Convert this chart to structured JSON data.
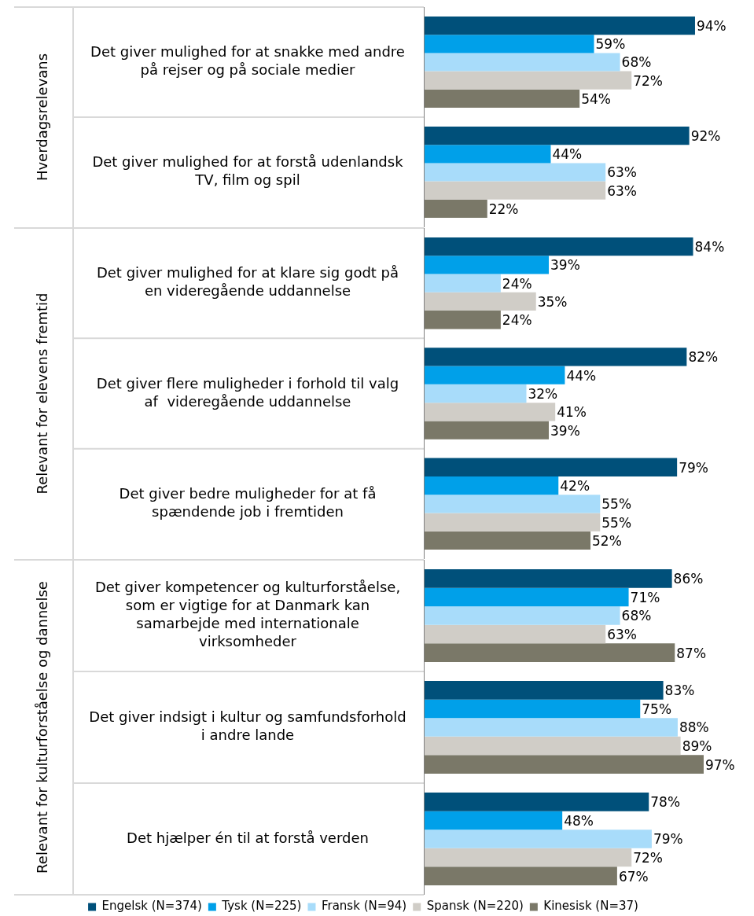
{
  "chart_data": [
    {
      "type": "bar",
      "orientation": "horizontal",
      "title": "Hverdagsrelevans",
      "categories": [
        "Det giver mulighed for at snakke med andre på rejser og på sociale medier",
        "Det giver mulighed for at forstå udenlandsk TV, film og spil"
      ],
      "series": [
        {
          "color": "#00507a",
          "values": [
            94,
            92
          ],
          "value_labels": [
            "94%",
            "92%"
          ]
        },
        {
          "color": "#00a0e9",
          "values": [
            59,
            44
          ],
          "value_labels": [
            "59%",
            "44%"
          ]
        },
        {
          "color": "#a8dcfa",
          "values": [
            68,
            63
          ],
          "value_labels": [
            "68%",
            "63%"
          ]
        },
        {
          "color": "#d0cdc7",
          "values": [
            72,
            63
          ],
          "value_labels": [
            "72%",
            "63%"
          ]
        },
        {
          "color": "#7a7868",
          "values": [
            54,
            22
          ],
          "value_labels": [
            "54%",
            "22%"
          ]
        }
      ]
    },
    {
      "type": "bar",
      "orientation": "horizontal",
      "title": "Relevant for elevens fremtid",
      "categories": [
        "Det giver mulighed for at klare sig godt på en videregående uddannelse",
        "Det giver flere muligheder i forhold til valg af  videregående uddannelse",
        "Det giver bedre muligheder for at få spændende job i fremtiden"
      ],
      "series": [
        {
          "color": "#00507a",
          "values": [
            84,
            82,
            79
          ],
          "value_labels": [
            "84%",
            "82%",
            "79%"
          ]
        },
        {
          "color": "#00a0e9",
          "values": [
            39,
            44,
            42
          ],
          "value_labels": [
            "39%",
            "44%",
            "42%"
          ]
        },
        {
          "color": "#a8dcfa",
          "values": [
            24,
            32,
            55
          ],
          "value_labels": [
            "24%",
            "32%",
            "55%"
          ]
        },
        {
          "color": "#d0cdc7",
          "values": [
            35,
            41,
            55
          ],
          "value_labels": [
            "35%",
            "41%",
            "55%"
          ]
        },
        {
          "color": "#7a7868",
          "values": [
            24,
            39,
            52
          ],
          "value_labels": [
            "24%",
            "39%",
            "52%"
          ]
        }
      ]
    },
    {
      "type": "bar",
      "orientation": "horizontal",
      "title": "Relevant for kulturforståelse og dannelse",
      "categories": [
        "Det giver kompetencer og kulturforståelse, som er vigtige for at Danmark kan samarbejde med internationale virksomheder",
        "Det giver indsigt i kultur og samfundsforhold i andre lande",
        "Det hjælper én til at forstå verden"
      ],
      "series": [
        {
          "name": "Engelsk (N=374)",
          "color": "#00507a",
          "values": [
            86,
            83,
            78
          ],
          "value_labels": [
            "86%",
            "83%",
            "78%"
          ]
        },
        {
          "name": "Tysk (N=225)",
          "color": "#00a0e9",
          "values": [
            71,
            75,
            48
          ],
          "value_labels": [
            "71%",
            "75%",
            "48%"
          ]
        },
        {
          "name": "Fransk (N=94)",
          "color": "#a8dcfa",
          "values": [
            68,
            88,
            79
          ],
          "value_labels": [
            "68%",
            "88%",
            "79%"
          ]
        },
        {
          "name": "Spansk (N=220)",
          "color": "#d0cdc7",
          "values": [
            63,
            89,
            72
          ],
          "value_labels": [
            "63%",
            "89%",
            "72%"
          ]
        },
        {
          "name": "Kinesisk (N=37)",
          "color": "#7a7868",
          "values": [
            87,
            97,
            67
          ],
          "value_labels": [
            "87%",
            "97%",
            "67%"
          ]
        }
      ],
      "legend": "bottom"
    }
  ]
}
